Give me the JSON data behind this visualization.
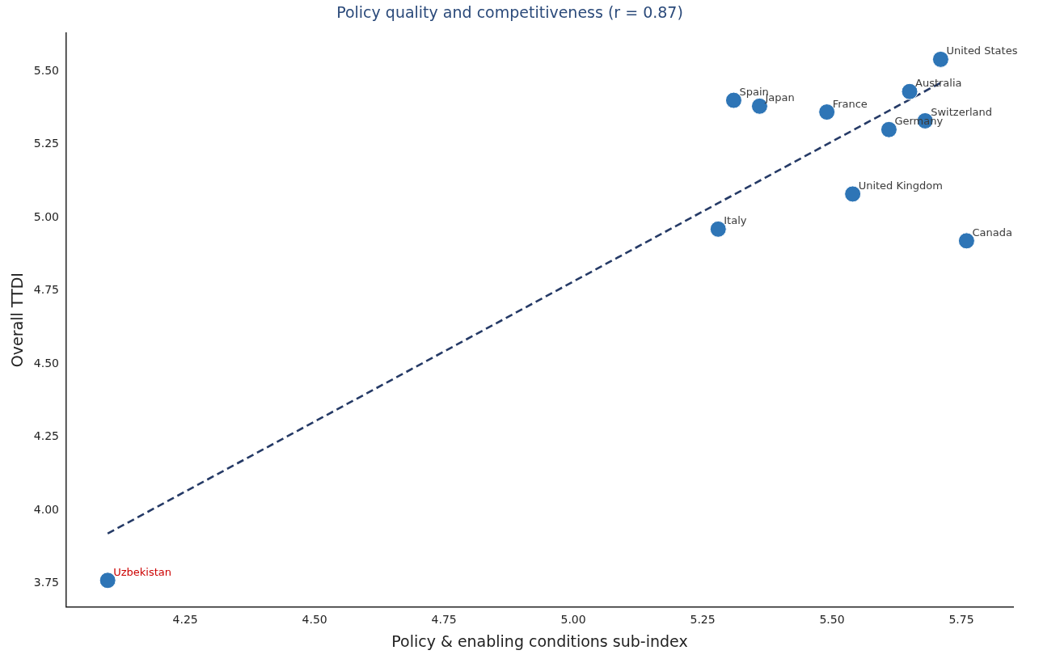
{
  "chart_data": {
    "type": "scatter",
    "title": "Policy quality and competitiveness (r = 0.87)",
    "xlabel": "Policy & enabling conditions sub-index",
    "ylabel": "Overall TTDI",
    "series": [
      {
        "color": "#2e75b6",
        "x": [
          5.28,
          5.31,
          5.36,
          5.49,
          5.54,
          5.61,
          5.65,
          5.68,
          5.71,
          5.76
        ],
        "values": [
          4.96,
          5.4,
          5.38,
          5.36,
          5.08,
          5.3,
          5.43,
          5.33,
          5.54,
          4.92
        ]
      },
      {
        "name": "Uzbekistan",
        "color": "#2e75b6",
        "x": [
          4.1
        ],
        "values": [
          3.76
        ]
      },
      {
        "type": "line",
        "color": "#253a66",
        "line_style": "dashed",
        "marker": "none",
        "x": [
          4.1,
          5.71
        ],
        "values": [
          3.92,
          5.46
        ]
      }
    ],
    "annotations": [
      {
        "text": "Italy",
        "x": 5.28,
        "y": 4.96
      },
      {
        "text": "Spain",
        "x": 5.31,
        "y": 5.4
      },
      {
        "text": "Japan",
        "x": 5.36,
        "y": 5.38
      },
      {
        "text": "France",
        "x": 5.49,
        "y": 5.36
      },
      {
        "text": "United Kingdom",
        "x": 5.54,
        "y": 5.08
      },
      {
        "text": "Germany",
        "x": 5.61,
        "y": 5.3
      },
      {
        "text": "Australia",
        "x": 5.65,
        "y": 5.43
      },
      {
        "text": "Switzerland",
        "x": 5.68,
        "y": 5.33
      },
      {
        "text": "United States",
        "x": 5.71,
        "y": 5.54
      },
      {
        "text": "Canada",
        "x": 5.76,
        "y": 4.92
      }
    ],
    "xlim": [
      4.02,
      5.85
    ],
    "ylim": [
      3.67,
      5.63
    ],
    "xticks": [
      4.25,
      {
        "value": 4.5,
        "label": "4.50"
      },
      4.75,
      {
        "value": 5,
        "label": "5.00"
      },
      5.25,
      {
        "value": 5.5,
        "label": "5.50"
      },
      5.75
    ],
    "yticks": [
      3.75,
      {
        "value": 4,
        "label": "4.00"
      },
      4.25,
      {
        "value": 4.5,
        "label": "4.50"
      },
      4.75,
      {
        "value": 5,
        "label": "5.00"
      },
      5.25,
      {
        "value": 5.5,
        "label": "5.50"
      }
    ],
    "marker": "circle",
    "grid": false,
    "legend": false
  }
}
